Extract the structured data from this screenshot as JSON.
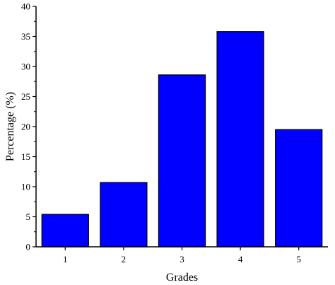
{
  "chart_data": {
    "type": "bar",
    "title": "",
    "xlabel": "Grades",
    "ylabel": "Percentage (%)",
    "categories": [
      "1",
      "2",
      "3",
      "4",
      "5"
    ],
    "values": [
      5.4,
      10.7,
      28.6,
      35.8,
      19.5
    ],
    "ylim": [
      0,
      40
    ],
    "yticks": [
      0,
      5,
      10,
      15,
      20,
      25,
      30,
      35,
      40
    ],
    "grid": false,
    "legend": "none",
    "bar_color": "#0000FF",
    "bar_edge_color": "#000000"
  }
}
